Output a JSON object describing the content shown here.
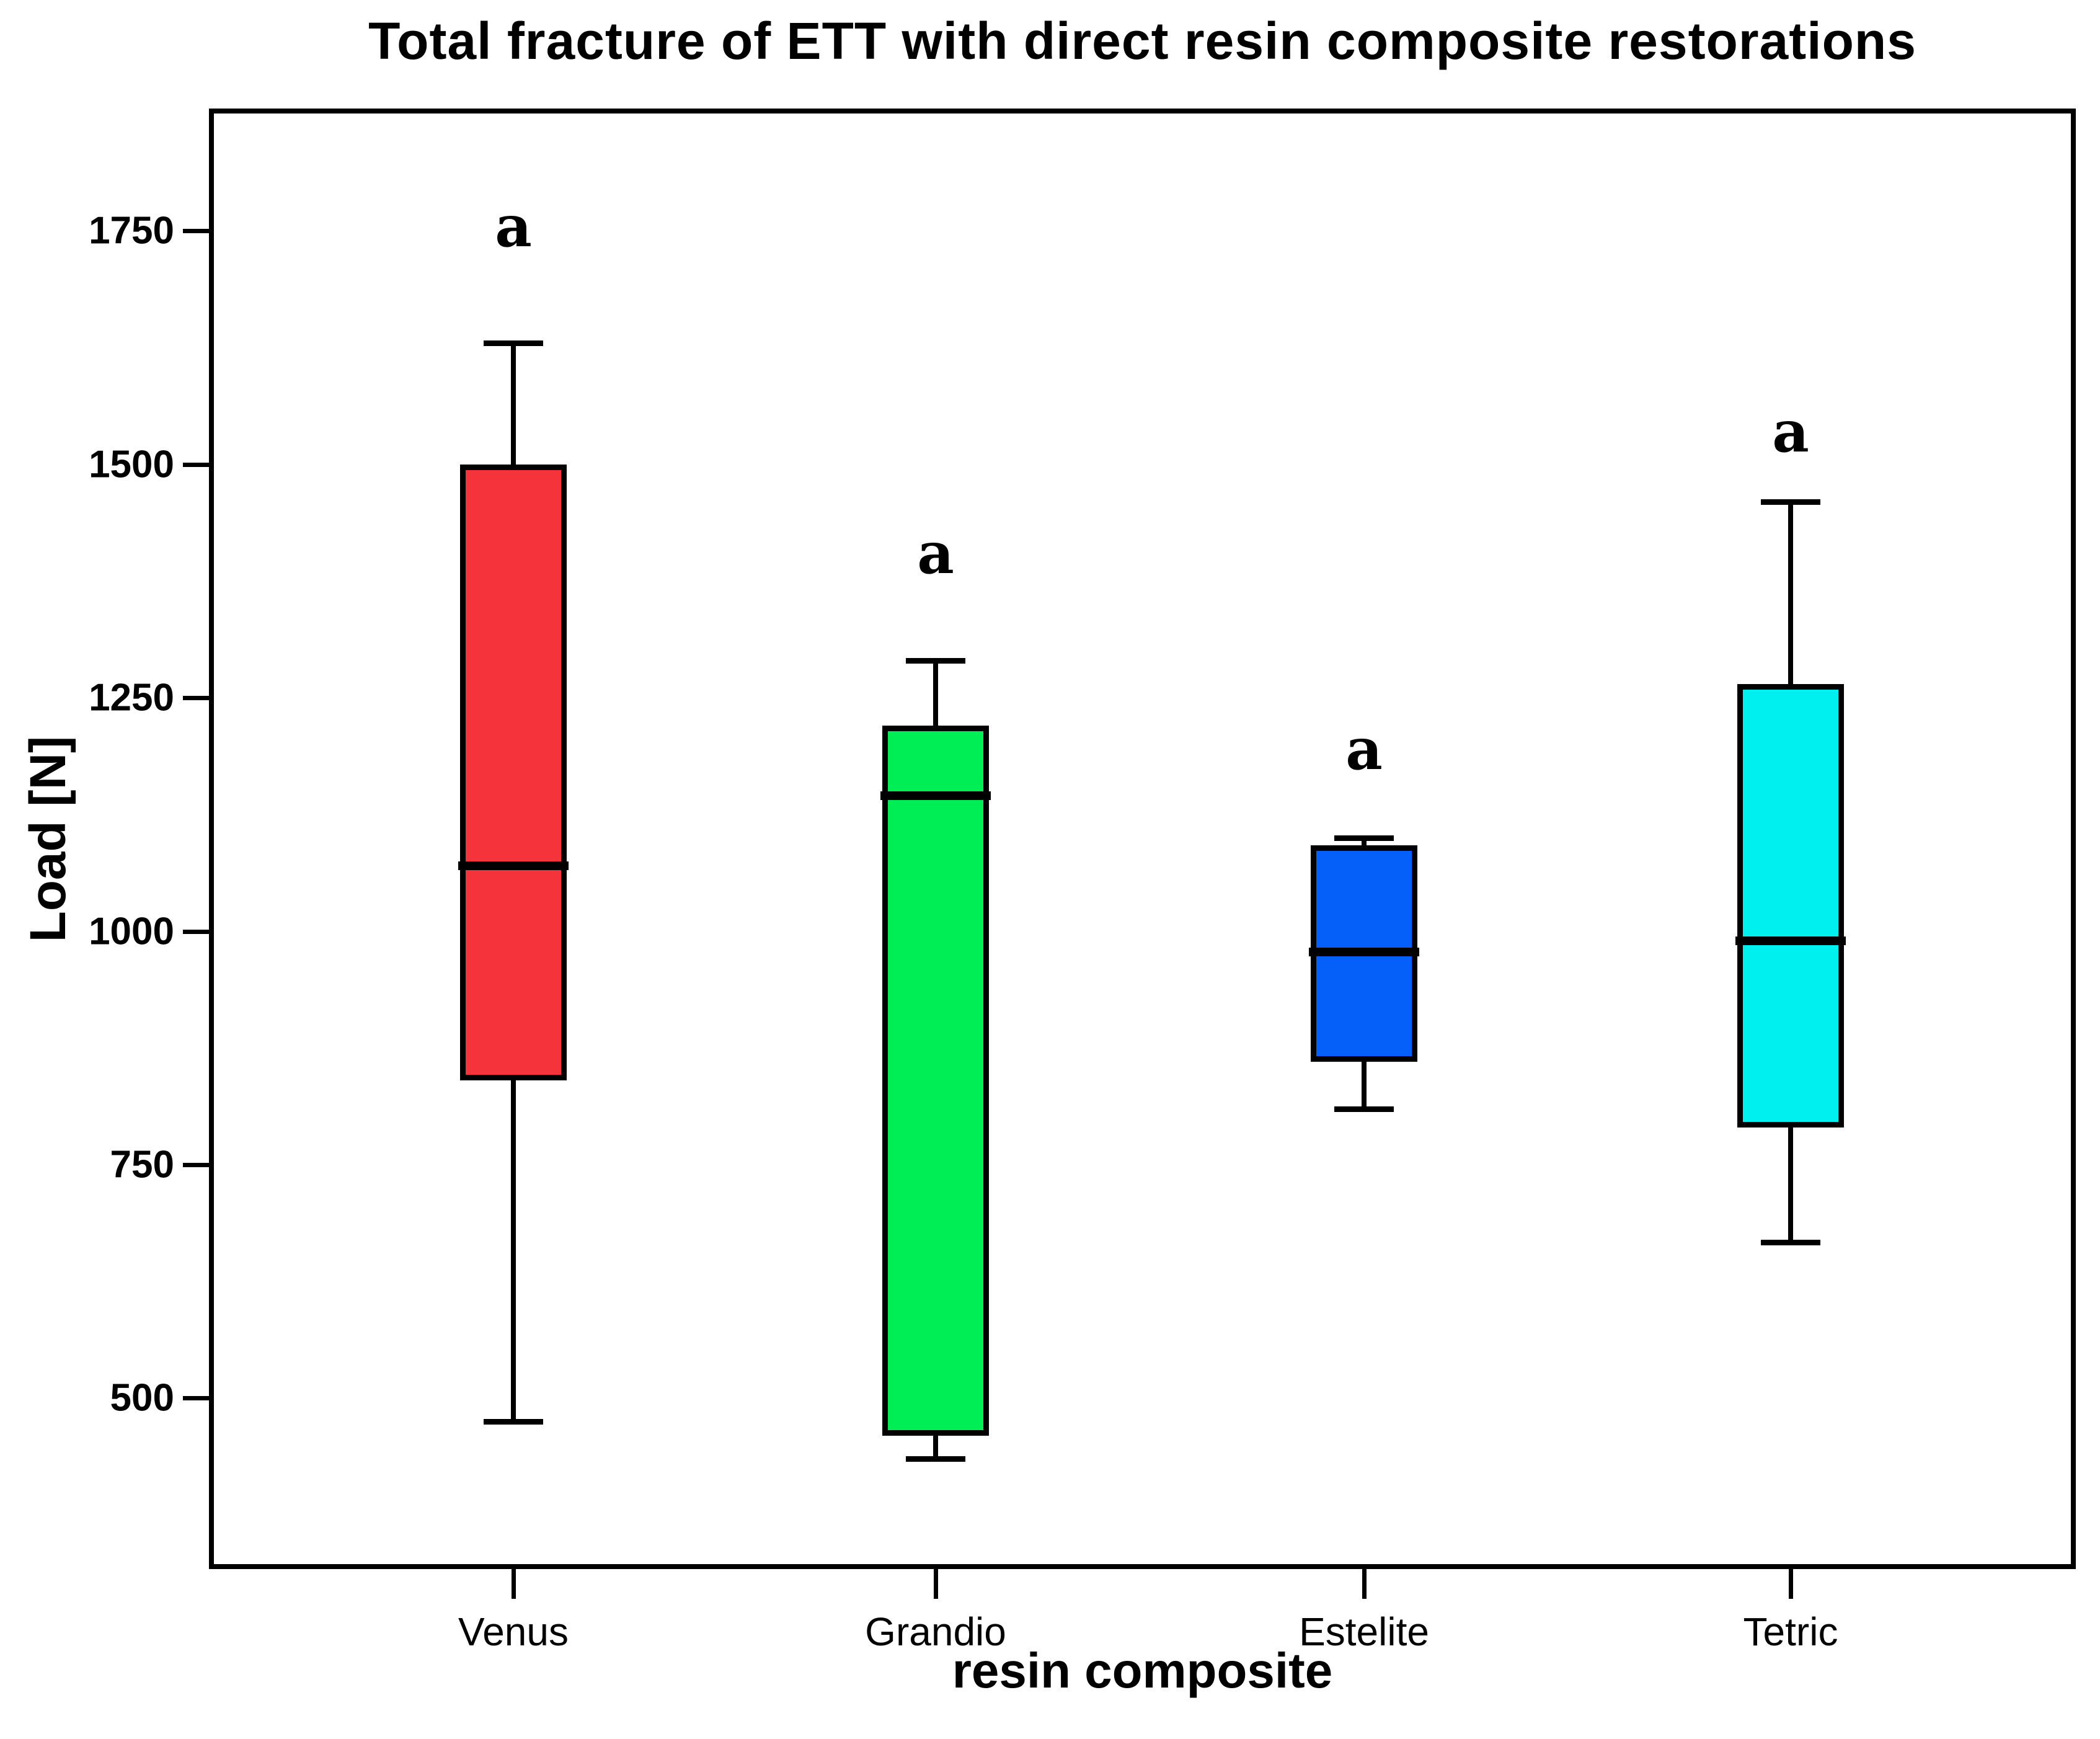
{
  "chart_data": {
    "type": "boxplot",
    "title": "Total fracture of ETT with direct resin composite restorations",
    "xlabel": "resin composite",
    "ylabel": "Load [N]",
    "ylim": [
      317,
      1881
    ],
    "yticks": [
      500,
      750,
      1000,
      1250,
      1500,
      1750
    ],
    "grid": false,
    "legend": "none",
    "categories": [
      "Venus",
      "Grandio",
      "Estelite",
      "Tetric"
    ],
    "series": [
      {
        "name": "Venus",
        "whisker_low": 475,
        "q1": 840,
        "median": 1070,
        "q3": 1500,
        "whisker_high": 1630,
        "color": "#F5333B",
        "annotation": "a",
        "annotation_y": 1755
      },
      {
        "name": "Grandio",
        "whisker_low": 435,
        "q1": 460,
        "median": 1145,
        "q3": 1220,
        "whisker_high": 1290,
        "color": "#00EE55",
        "annotation": "a",
        "annotation_y": 1405
      },
      {
        "name": "Estelite",
        "whisker_low": 810,
        "q1": 860,
        "median": 978,
        "q3": 1092,
        "whisker_high": 1100,
        "color": "#0560FA",
        "annotation": "a",
        "annotation_y": 1195
      },
      {
        "name": "Tetric",
        "whisker_low": 667,
        "q1": 790,
        "median": 990,
        "q3": 1265,
        "whisker_high": 1460,
        "color": "#00F0F0",
        "annotation": "a",
        "annotation_y": 1535
      }
    ]
  }
}
